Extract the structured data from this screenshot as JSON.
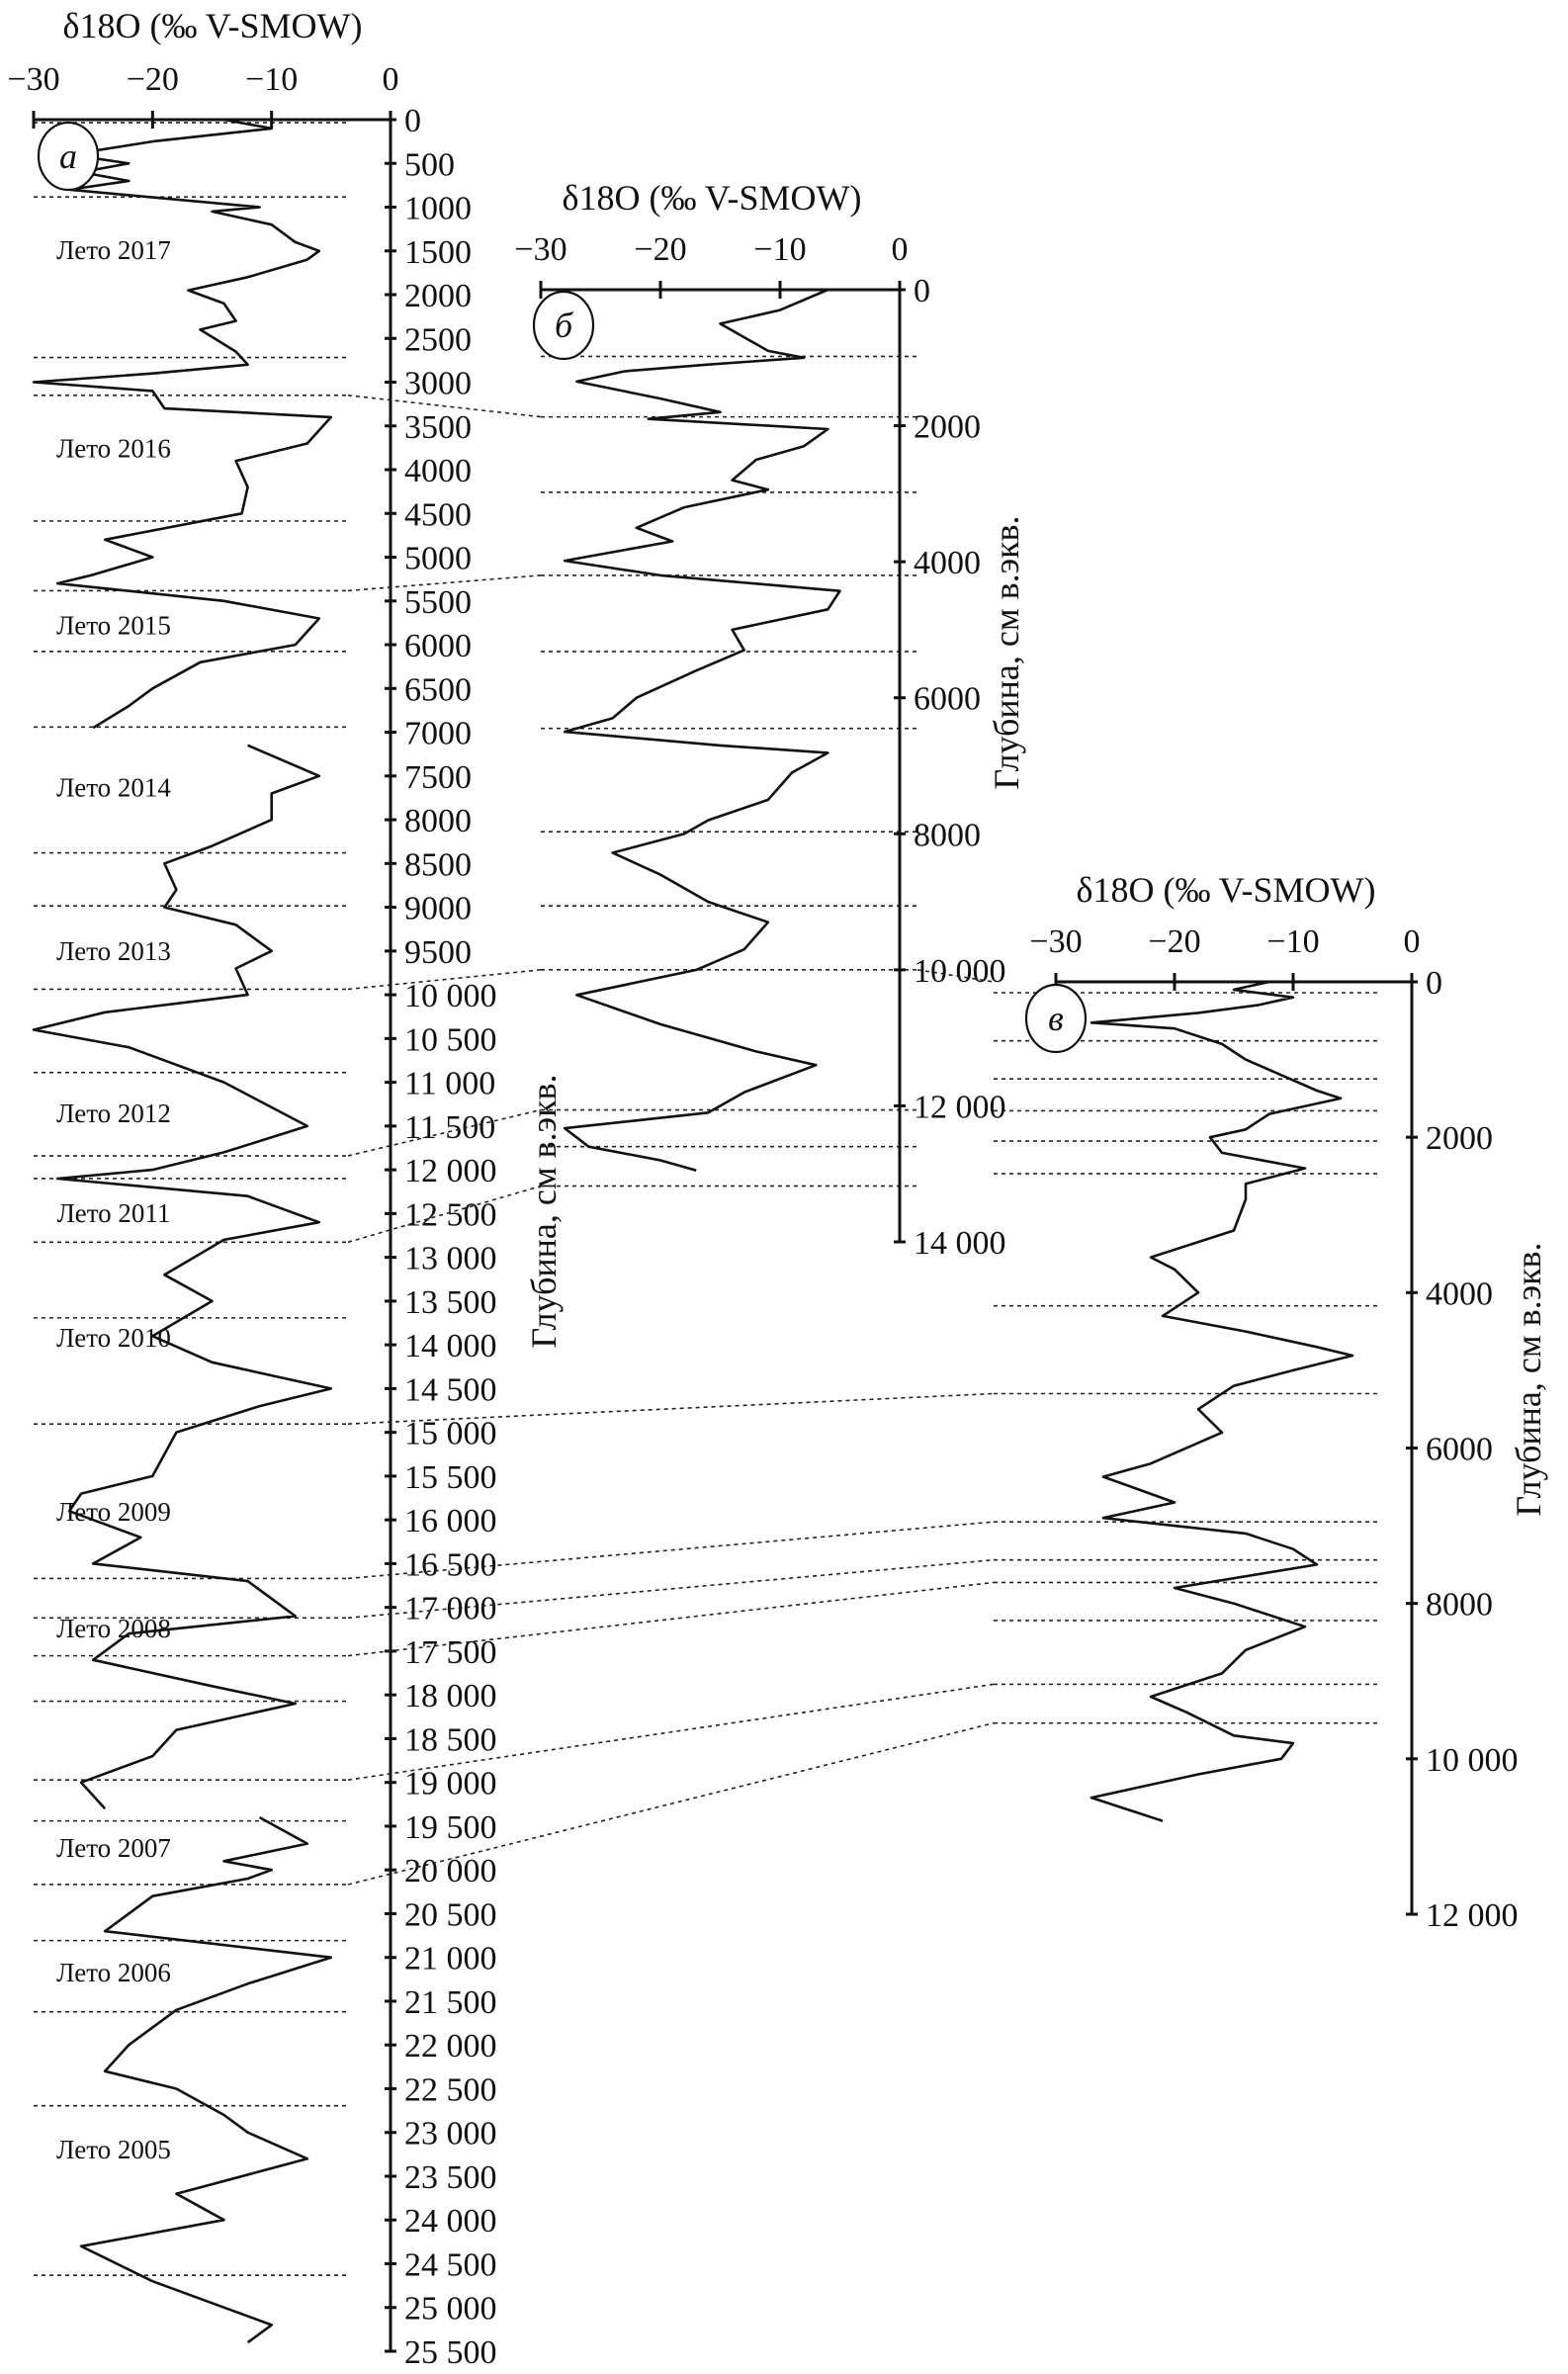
{
  "chart_data": [
    {
      "type": "line",
      "panel": "a",
      "letter": "а",
      "title": "δ18O (‰ V-SMOW)",
      "ylabel": "Глубина, см в.экв.",
      "xlim": [
        -30,
        0
      ],
      "xticks": [
        -30,
        -20,
        -10,
        0
      ],
      "xtick_labels": [
        "−30",
        "−20",
        "−10",
        "0"
      ],
      "ylim": [
        0,
        25500
      ],
      "yticks_step": 500,
      "depth": [
        0,
        100,
        250,
        400,
        500,
        600,
        700,
        800,
        900,
        1000,
        1050,
        1200,
        1400,
        1500,
        1600,
        1800,
        1950,
        2100,
        2300,
        2400,
        2650,
        2800,
        2900,
        3000,
        3100,
        3300,
        3400,
        3700,
        3900,
        4200,
        4500,
        4800,
        5000,
        5200,
        5300,
        5500,
        5700,
        6000,
        6200,
        6500,
        6700,
        6950,
        null,
        7150,
        7500,
        7700,
        8000,
        8300,
        8500,
        8800,
        9000,
        9200,
        9500,
        9700,
        10000,
        10200,
        10400,
        10600,
        11000,
        11500,
        11800,
        12000,
        12100,
        12300,
        12600,
        12800,
        13200,
        13500,
        13900,
        14200,
        14500,
        14700,
        15000,
        15500,
        15700,
        15900,
        16200,
        16500,
        16700,
        16900,
        17100,
        17300,
        17600,
        17900,
        18100,
        18400,
        18700,
        19000,
        19300,
        null,
        19400,
        19700,
        19900,
        20000,
        20100,
        20300,
        20700,
        21000,
        21300,
        21600,
        22000,
        22300,
        22500,
        22800,
        23000,
        23300,
        23700,
        24000,
        24300,
        24700,
        25000,
        25200,
        25400
      ],
      "values": [
        -14,
        -10,
        -20,
        -27,
        -22,
        -26,
        -22,
        -27,
        -19,
        -11,
        -15,
        -10,
        -8,
        -6,
        -7,
        -12,
        -17,
        -14,
        -13,
        -16,
        -13,
        -12,
        -20,
        -30,
        -20,
        -19,
        -5,
        -7,
        -13,
        -12,
        -12.5,
        -24,
        -20,
        -25,
        -28,
        -14,
        -6,
        -8,
        -16,
        -20,
        -22,
        -25,
        null,
        -12,
        -6,
        -10,
        -10,
        -15,
        -19,
        -18,
        -19,
        -13,
        -10,
        -13,
        -12,
        -24,
        -30,
        -22,
        -14,
        -7,
        -14,
        -20,
        -28,
        -12,
        -6,
        -14,
        -19,
        -15,
        -20,
        -15,
        -5,
        -11,
        -18,
        -20,
        -26,
        -27,
        -21,
        -25,
        -12,
        -10,
        -8,
        -22,
        -25,
        -15,
        -8,
        -18,
        -20,
        -26,
        -24,
        null,
        -11,
        -7,
        -14,
        -10,
        -12,
        -20,
        -24,
        -5,
        -12,
        -18,
        -22,
        -24,
        -18,
        -14,
        -12,
        -7,
        -18,
        -14,
        -26,
        -20,
        -14,
        -10,
        -12
      ],
      "boundaries": [
        35,
        883,
        2718,
        3150,
        4587,
        5383,
        6076,
        6941,
        8378,
        8984,
        9936,
        10888,
        11840,
        12100,
        12827,
        13692,
        14904,
        16670,
        17120,
        17553,
        18072,
        18972,
        19440,
        20167,
        20807,
        21621,
        22694,
        24632
      ],
      "annotations": [
        {
          "text": "Лето 2017",
          "depth": 1489
        },
        {
          "text": "Лето 2016",
          "depth": 3756
        },
        {
          "text": "Лето 2015",
          "depth": 5781
        },
        {
          "text": "Лето 2014",
          "depth": 7634
        },
        {
          "text": "Лето 2013",
          "depth": 9503
        },
        {
          "text": "Лето 2012",
          "depth": 11355
        },
        {
          "text": "Лето 2011",
          "depth": 12498
        },
        {
          "text": "Лето 2010",
          "depth": 13917
        },
        {
          "text": "Лето 2009",
          "depth": 15908
        },
        {
          "text": "Лето 2008",
          "depth": 17241
        },
        {
          "text": "Лето 2007",
          "depth": 19750
        },
        {
          "text": "Лето 2006",
          "depth": 21170
        },
        {
          "text": "Лето 2005",
          "depth": 23195
        }
      ]
    },
    {
      "type": "line",
      "panel": "b",
      "letter": "б",
      "title": "δ18O (‰ V-SMOW)",
      "ylabel": "Глубина, см в.экв.",
      "xlim": [
        -30,
        0
      ],
      "xticks": [
        -30,
        -20,
        -10,
        0
      ],
      "xtick_labels": [
        "−30",
        "−20",
        "−10",
        "0"
      ],
      "ylim": [
        0,
        14000
      ],
      "yticks_step": 2000,
      "depth": [
        0,
        300,
        500,
        700,
        900,
        1000,
        1100,
        1200,
        1350,
        1600,
        1800,
        1900,
        2050,
        2300,
        2500,
        2800,
        2940,
        3200,
        3500,
        3700,
        3985,
        4200,
        4430,
        4700,
        5000,
        5300,
        5600,
        6000,
        6300,
        6500,
        6700,
        6810,
        7100,
        7500,
        7800,
        8000,
        8280,
        8600,
        9000,
        9300,
        9700,
        10000,
        10370,
        10800,
        11200,
        11400,
        11800,
        12100,
        12330,
        12600,
        12800,
        12950
      ],
      "values": [
        -6,
        -10,
        -15,
        -13,
        -11,
        -8,
        -16,
        -23,
        -27,
        -20,
        -15,
        -21,
        -6,
        -8,
        -12,
        -14,
        -11,
        -18,
        -22,
        -19,
        -28,
        -20,
        -5,
        -6,
        -14,
        -13,
        -17,
        -22,
        -24,
        -28,
        -15,
        -6,
        -9,
        -11,
        -16,
        -18,
        -24,
        -20,
        -16,
        -11,
        -13,
        -17,
        -27,
        -20,
        -12,
        -7,
        -13,
        -16,
        -28,
        -26,
        -20,
        -17
      ],
      "boundaries": [
        980,
        1870,
        2980,
        4200,
        5320,
        6450,
        7970,
        9060,
        10000,
        12060,
        12600,
        13180
      ],
      "annotations": []
    },
    {
      "type": "line",
      "panel": "c",
      "letter": "в",
      "title": "δ18O (‰ V-SMOW)",
      "ylabel": "Глубина, см в.экв.",
      "xlim": [
        -30,
        0
      ],
      "xticks": [
        -30,
        -20,
        -10,
        0
      ],
      "xtick_labels": [
        "−30",
        "−20",
        "−10",
        "0"
      ],
      "ylim": [
        0,
        12000
      ],
      "yticks_step": 2000,
      "depth": [
        0,
        100,
        200,
        300,
        400,
        525,
        600,
        800,
        1000,
        1200,
        1400,
        1500,
        1700,
        1900,
        2000,
        2200,
        2400,
        2600,
        2800,
        3200,
        3545,
        3700,
        4000,
        4300,
        4500,
        4700,
        4810,
        5000,
        5200,
        5500,
        5800,
        6200,
        6370,
        6700,
        6900,
        7100,
        7300,
        7500,
        7800,
        8000,
        8300,
        8600,
        8900,
        9200,
        9400,
        9700,
        9800,
        10000,
        10200,
        10500,
        10800
      ],
      "values": [
        -12,
        -15,
        -10,
        -13,
        -18,
        -27,
        -20,
        -16,
        -14,
        -11,
        -8,
        -6,
        -12,
        -14,
        -17,
        -16,
        -9,
        -14,
        -14,
        -15,
        -22,
        -20,
        -18,
        -21,
        -14,
        -8,
        -5,
        -10,
        -15,
        -18,
        -16,
        -22,
        -26,
        -20,
        -26,
        -14,
        -10,
        -8,
        -20,
        -15,
        -9,
        -14,
        -16,
        -22,
        -19,
        -15,
        -10,
        -11,
        -18,
        -27,
        -21
      ],
      "boundaries": [
        140,
        760,
        1250,
        1660,
        2050,
        2470,
        4170,
        5300,
        6950,
        7440,
        7730,
        8220,
        9040,
        9540
      ],
      "annotations": []
    }
  ],
  "correlations": [
    {
      "from": "a",
      "from_depth": 3150,
      "to": "b",
      "to_depth": 1870
    },
    {
      "from": "a",
      "from_depth": 5383,
      "to": "b",
      "to_depth": 4200
    },
    {
      "from": "a",
      "from_depth": 9936,
      "to": "b",
      "to_depth": 10000
    },
    {
      "from": "b",
      "from_depth": 10000,
      "to": "c",
      "to_depth": 0
    },
    {
      "from": "a",
      "from_depth": 11840,
      "to": "b",
      "to_depth": 12060
    },
    {
      "from": "a",
      "from_depth": 12827,
      "to": "b",
      "to_depth": 13180
    },
    {
      "from": "a",
      "from_depth": 14904,
      "to": "c",
      "to_depth": 5300
    },
    {
      "from": "a",
      "from_depth": 16670,
      "to": "c",
      "to_depth": 6950
    },
    {
      "from": "a",
      "from_depth": 17120,
      "to": "c",
      "to_depth": 7440
    },
    {
      "from": "a",
      "from_depth": 17553,
      "to": "c",
      "to_depth": 7730
    },
    {
      "from": "a",
      "from_depth": 18972,
      "to": "c",
      "to_depth": 9040
    },
    {
      "from": "a",
      "from_depth": 20167,
      "to": "c",
      "to_depth": 9540
    }
  ]
}
